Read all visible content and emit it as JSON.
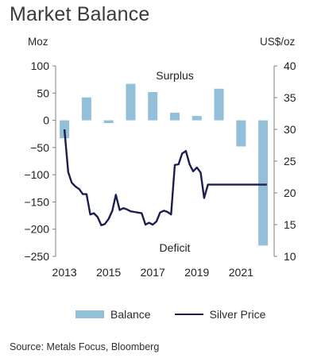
{
  "title": "Market Balance",
  "source": "Source: Metals Focus, Bloomberg",
  "chart_data": {
    "type": "bar+line",
    "left_unit": "Moz",
    "right_unit": "US$/oz",
    "left_ylim": [
      -250,
      100
    ],
    "left_ticks": [
      "100",
      "50",
      "0",
      "−50",
      "−100",
      "−150",
      "−200",
      "−250"
    ],
    "left_tick_values": [
      100,
      50,
      0,
      -50,
      -100,
      -150,
      -200,
      -250
    ],
    "right_ylim": [
      10,
      40
    ],
    "right_ticks": [
      "40",
      "35",
      "30",
      "25",
      "20",
      "15",
      "10"
    ],
    "right_tick_values": [
      40,
      35,
      30,
      25,
      20,
      15,
      10
    ],
    "x_ticks": [
      "2013",
      "2015",
      "2017",
      "2019",
      "2021"
    ],
    "x_tick_values": [
      2013,
      2015,
      2017,
      2019,
      2021
    ],
    "xlim": [
      2012.6,
      2022.5
    ],
    "annotations": {
      "surplus": "Surplus",
      "deficit": "Deficit"
    },
    "balance": {
      "name": "Balance",
      "color": "#93bfd8",
      "x": [
        2013,
        2014,
        2015,
        2016,
        2017,
        2018,
        2019,
        2020,
        2021,
        2022
      ],
      "values": [
        -33,
        42,
        -5,
        67,
        52,
        14,
        8,
        58,
        -48,
        -230
      ]
    },
    "silver_price": {
      "name": "Silver Price",
      "color": "#1b1e4e",
      "x": [
        2013.0,
        2013.17,
        2013.33,
        2013.5,
        2013.67,
        2013.83,
        2014.0,
        2014.17,
        2014.33,
        2014.5,
        2014.67,
        2014.83,
        2015.0,
        2015.17,
        2015.33,
        2015.5,
        2015.67,
        2015.83,
        2016.0,
        2016.17,
        2016.33,
        2016.5,
        2016.67,
        2016.83,
        2017.0,
        2017.17,
        2017.33,
        2017.5,
        2017.67,
        2017.83,
        2018.0,
        2018.17,
        2018.33,
        2018.5,
        2018.67,
        2018.83,
        2019.0,
        2019.17,
        2019.33,
        2019.5,
        2019.67,
        2019.83,
        2020.0,
        2020.17,
        2020.33,
        2020.5,
        2020.67,
        2020.83,
        2021.0,
        2021.17,
        2021.33,
        2021.5,
        2021.67,
        2021.83,
        2022.0,
        2022.17
      ],
      "values": [
        30.0,
        23.3,
        21.6,
        21.0,
        20.6,
        19.8,
        19.8,
        16.6,
        16.8,
        16.2,
        14.9,
        15.1,
        15.9,
        17.2,
        19.7,
        17.3,
        17.6,
        17.4,
        17.1,
        17.0,
        16.9,
        16.8,
        15.0,
        15.3,
        15.0,
        15.5,
        16.9,
        17.2,
        17.0,
        16.6,
        24.4,
        24.5,
        26.2,
        26.6,
        24.5,
        23.4,
        24.0,
        23.2,
        19.2,
        21.3,
        21.3,
        21.3,
        21.3,
        21.3,
        21.3,
        21.3,
        21.3,
        21.3,
        21.3,
        21.3,
        21.3,
        21.3,
        21.3,
        21.3,
        21.3,
        21.3
      ]
    }
  },
  "legend": {
    "balance": "Balance",
    "silver": "Silver Price"
  }
}
